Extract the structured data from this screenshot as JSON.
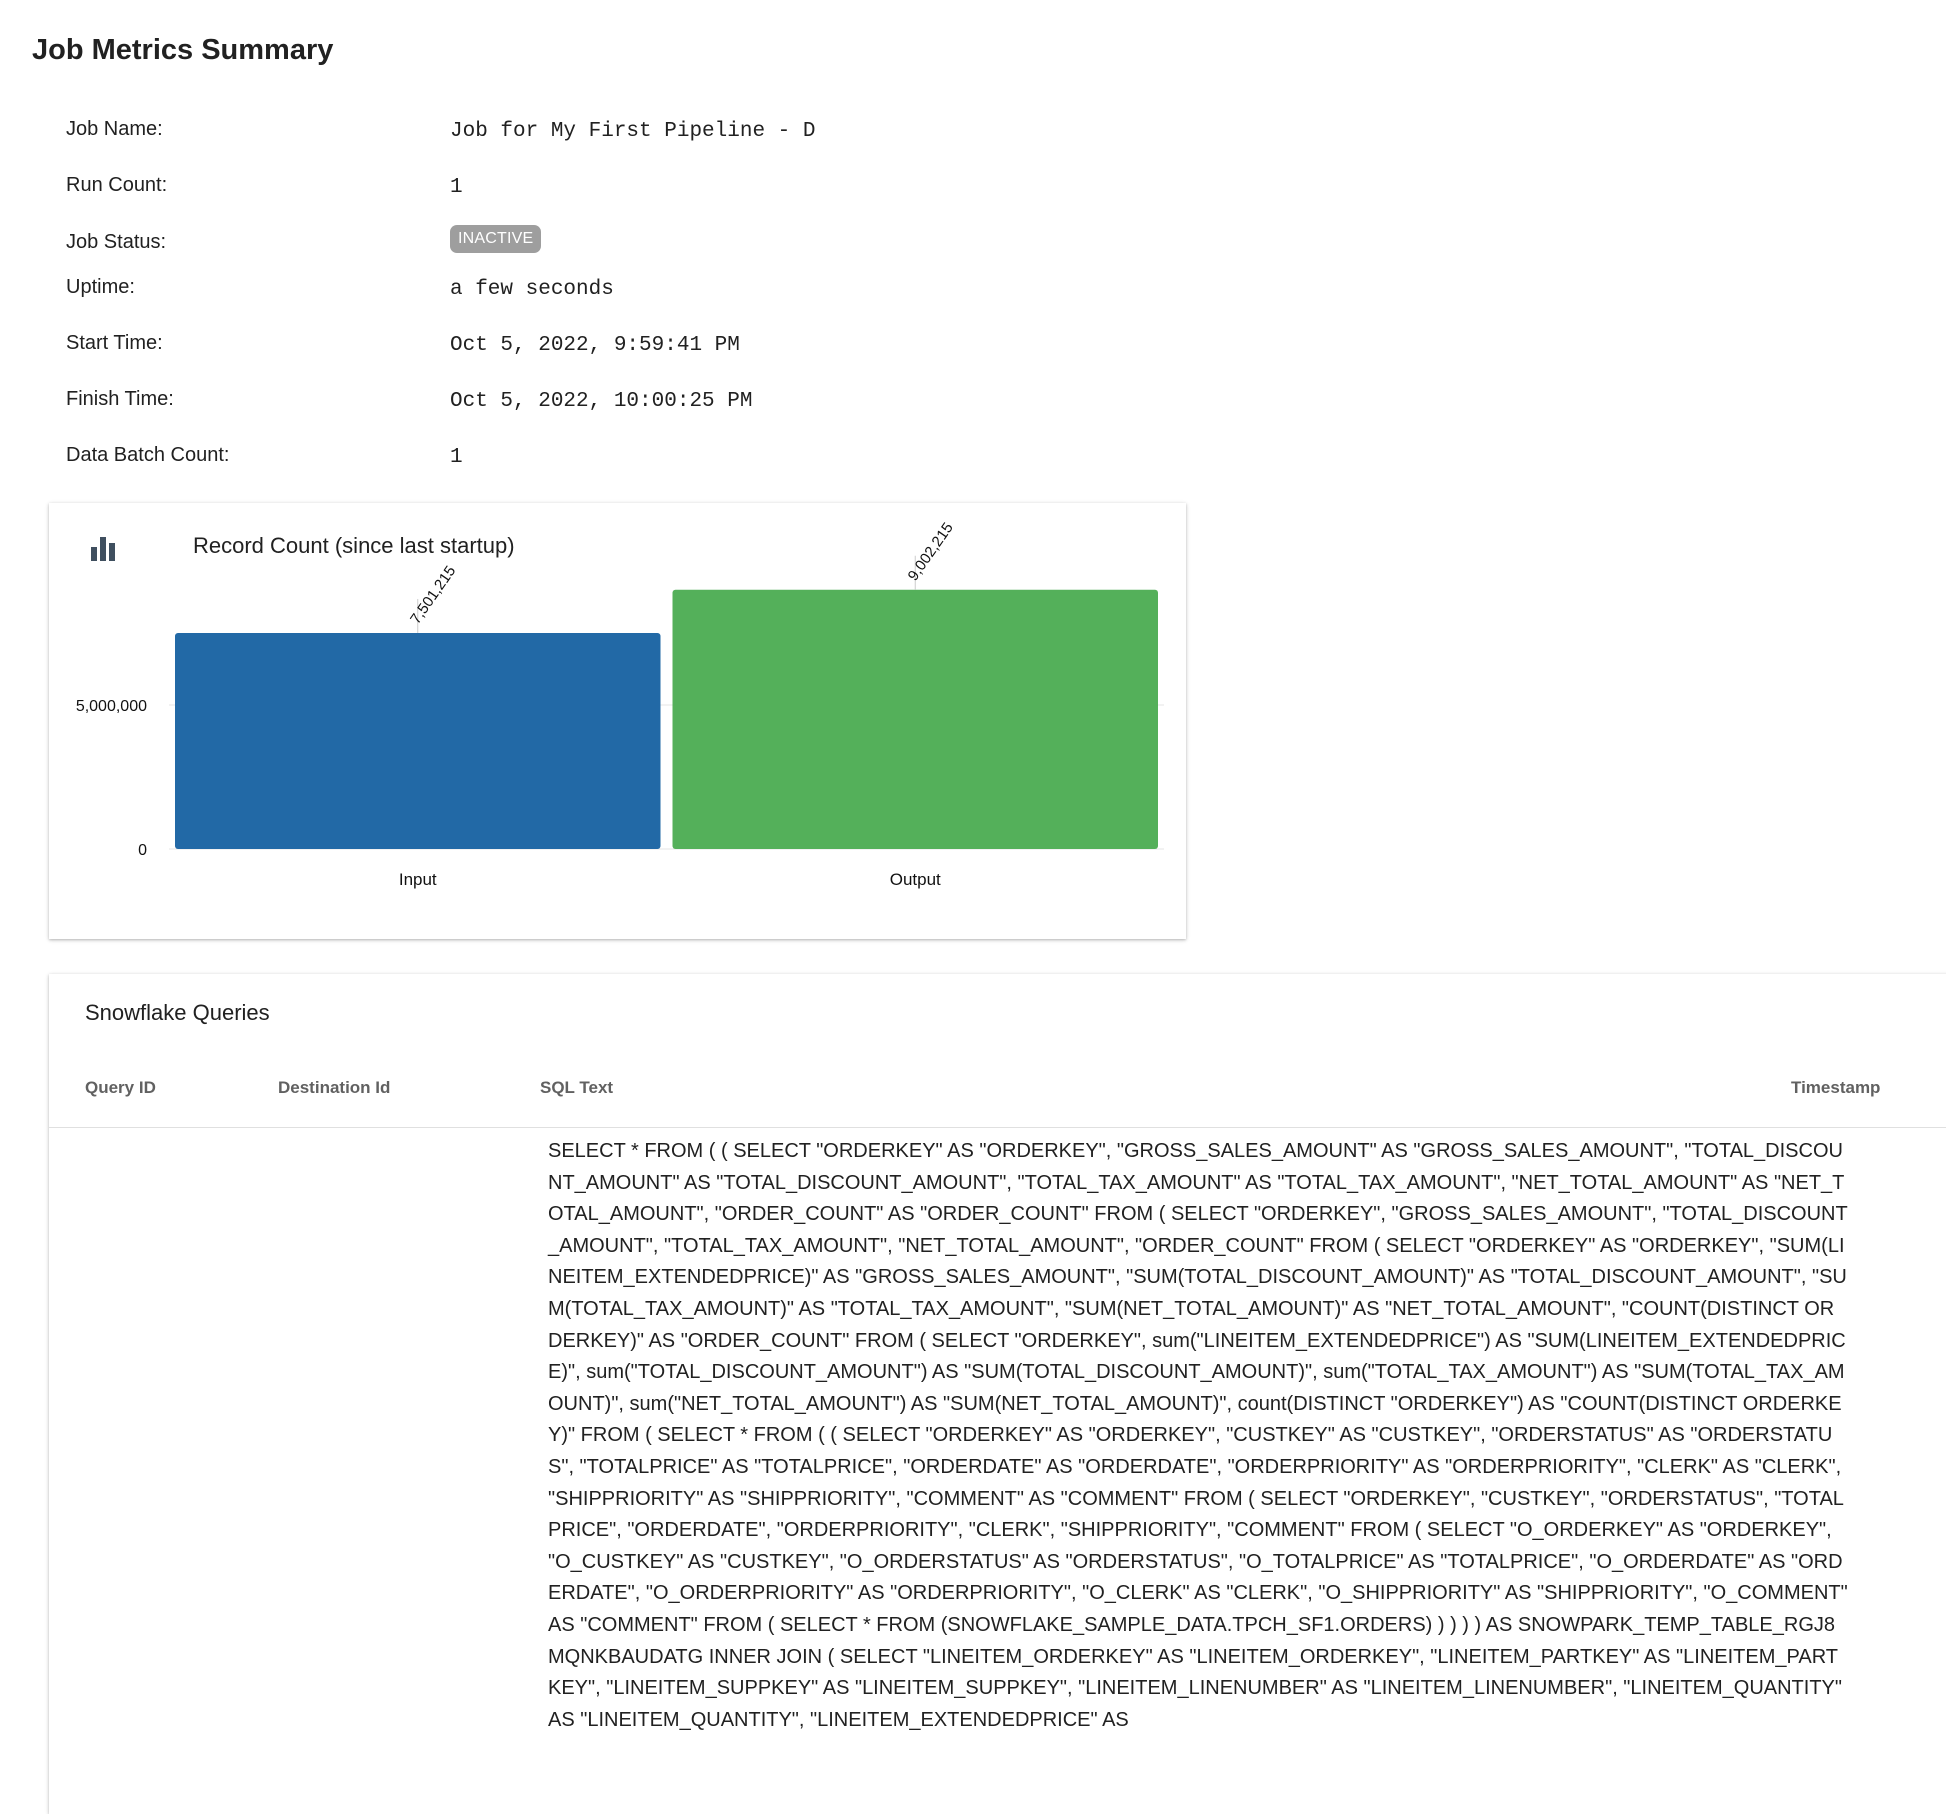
{
  "page": {
    "title": "Job Metrics Summary"
  },
  "metrics": {
    "job_name": {
      "label": "Job Name:",
      "value": "Job for My First Pipeline - D"
    },
    "run_count": {
      "label": "Run Count:",
      "value": "1"
    },
    "job_status": {
      "label": "Job Status:",
      "value": "INACTIVE",
      "badge_color": "#9e9e9e"
    },
    "uptime": {
      "label": "Uptime:",
      "value": "a few seconds"
    },
    "start_time": {
      "label": "Start Time:",
      "value": "Oct 5, 2022, 9:59:41 PM"
    },
    "finish_time": {
      "label": "Finish Time:",
      "value": "Oct 5, 2022, 10:00:25 PM"
    },
    "data_batch_count": {
      "label": "Data Batch Count:",
      "value": "1"
    }
  },
  "record_chart": {
    "icon": "bar-chart-icon",
    "title": "Record Count (since last startup)"
  },
  "chart_data": {
    "type": "bar",
    "title": "Record Count (since last startup)",
    "categories": [
      "Input",
      "Output"
    ],
    "values": [
      7501215,
      9002215
    ],
    "value_labels": [
      "7,501,215",
      "9,002,215"
    ],
    "colors": [
      "#2269a6",
      "#54b05a"
    ],
    "yticks": [
      0,
      5000000
    ],
    "ytick_labels": [
      "0",
      "5,000,000"
    ],
    "ylim": [
      0,
      10000000
    ],
    "xlabel": "",
    "ylabel": ""
  },
  "queries": {
    "title": "Snowflake Queries",
    "columns": [
      "Query ID",
      "Destination Id",
      "SQL Text",
      "Timestamp"
    ],
    "rows": [
      {
        "query_id": "",
        "destination_id": "",
        "sql_text": "SELECT * FROM ( ( SELECT \"ORDERKEY\" AS \"ORDERKEY\", \"GROSS_SALES_AMOUNT\" AS \"GROSS_SALES_AMOUNT\", \"TOTAL_DISCOUNT_AMOUNT\" AS \"TOTAL_DISCOUNT_AMOUNT\", \"TOTAL_TAX_AMOUNT\" AS \"TOTAL_TAX_AMOUNT\", \"NET_TOTAL_AMOUNT\" AS \"NET_TOTAL_AMOUNT\", \"ORDER_COUNT\" AS \"ORDER_COUNT\" FROM ( SELECT \"ORDERKEY\", \"GROSS_SALES_AMOUNT\", \"TOTAL_DISCOUNT_AMOUNT\", \"TOTAL_TAX_AMOUNT\", \"NET_TOTAL_AMOUNT\", \"ORDER_COUNT\" FROM ( SELECT \"ORDERKEY\" AS \"ORDERKEY\", \"SUM(LINEITEM_EXTENDEDPRICE)\" AS \"GROSS_SALES_AMOUNT\", \"SUM(TOTAL_DISCOUNT_AMOUNT)\" AS \"TOTAL_DISCOUNT_AMOUNT\", \"SUM(TOTAL_TAX_AMOUNT)\" AS \"TOTAL_TAX_AMOUNT\", \"SUM(NET_TOTAL_AMOUNT)\" AS \"NET_TOTAL_AMOUNT\", \"COUNT(DISTINCT ORDERKEY)\" AS \"ORDER_COUNT\" FROM ( SELECT \"ORDERKEY\", sum(\"LINEITEM_EXTENDEDPRICE\") AS \"SUM(LINEITEM_EXTENDEDPRICE)\", sum(\"TOTAL_DISCOUNT_AMOUNT\") AS \"SUM(TOTAL_DISCOUNT_AMOUNT)\", sum(\"TOTAL_TAX_AMOUNT\") AS \"SUM(TOTAL_TAX_AMOUNT)\", sum(\"NET_TOTAL_AMOUNT\") AS \"SUM(NET_TOTAL_AMOUNT)\", count(DISTINCT \"ORDERKEY\") AS \"COUNT(DISTINCT ORDERKEY)\" FROM ( SELECT * FROM ( ( SELECT \"ORDERKEY\" AS \"ORDERKEY\", \"CUSTKEY\" AS \"CUSTKEY\", \"ORDERSTATUS\" AS \"ORDERSTATUS\", \"TOTALPRICE\" AS \"TOTALPRICE\", \"ORDERDATE\" AS \"ORDERDATE\", \"ORDERPRIORITY\" AS \"ORDERPRIORITY\", \"CLERK\" AS \"CLERK\", \"SHIPPRIORITY\" AS \"SHIPPRIORITY\", \"COMMENT\" AS \"COMMENT\" FROM ( SELECT \"ORDERKEY\", \"CUSTKEY\", \"ORDERSTATUS\", \"TOTALPRICE\", \"ORDERDATE\", \"ORDERPRIORITY\", \"CLERK\", \"SHIPPRIORITY\", \"COMMENT\" FROM ( SELECT \"O_ORDERKEY\" AS \"ORDERKEY\", \"O_CUSTKEY\" AS \"CUSTKEY\", \"O_ORDERSTATUS\" AS \"ORDERSTATUS\", \"O_TOTALPRICE\" AS \"TOTALPRICE\", \"O_ORDERDATE\" AS \"ORDERDATE\", \"O_ORDERPRIORITY\" AS \"ORDERPRIORITY\", \"O_CLERK\" AS \"CLERK\", \"O_SHIPPRIORITY\" AS \"SHIPPRIORITY\", \"O_COMMENT\" AS \"COMMENT\" FROM ( SELECT * FROM (SNOWFLAKE_SAMPLE_DATA.TPCH_SF1.ORDERS) ) ) ) ) AS SNOWPARK_TEMP_TABLE_RGJ8MQNKBAUDATG INNER JOIN ( SELECT \"LINEITEM_ORDERKEY\" AS \"LINEITEM_ORDERKEY\", \"LINEITEM_PARTKEY\" AS \"LINEITEM_PARTKEY\", \"LINEITEM_SUPPKEY\" AS \"LINEITEM_SUPPKEY\", \"LINEITEM_LINENUMBER\" AS \"LINEITEM_LINENUMBER\", \"LINEITEM_QUANTITY\" AS \"LINEITEM_QUANTITY\", \"LINEITEM_EXTENDEDPRICE\" AS",
        "timestamp": ""
      }
    ]
  }
}
